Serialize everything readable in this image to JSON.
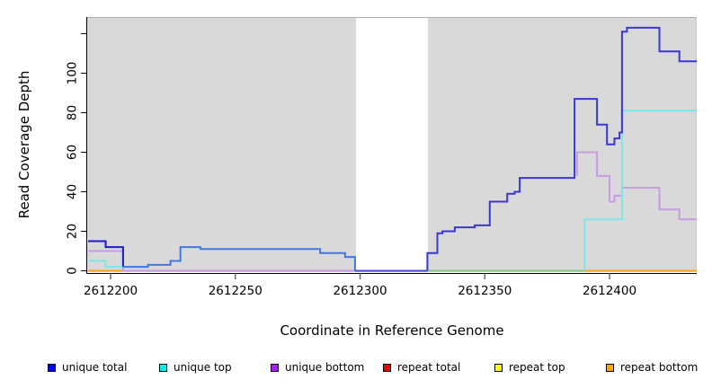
{
  "figure": {
    "panel_bg": "#D9D9D9",
    "page_bg": "#FFFFFF",
    "masked_region": {
      "x_start": 2612298.4,
      "x_end": 2612327.2,
      "color": "#FFFFFF"
    }
  },
  "axes": {
    "x": {
      "label": "Coordinate in Reference Genome",
      "ticks": [
        2612200,
        2612250,
        2612300,
        2612350,
        2612400
      ],
      "range": [
        2612190.6,
        2612435.2
      ]
    },
    "y": {
      "label": "Read Coverage Depth",
      "ticks": [
        0,
        20,
        40,
        60,
        80,
        100
      ],
      "unlabeled_ticks": [
        120
      ],
      "range": [
        -1,
        128.4
      ]
    }
  },
  "legend": {
    "items": [
      {
        "label": "unique total",
        "color": "#0000EE"
      },
      {
        "label": "unique top",
        "color": "#00EEEE"
      },
      {
        "label": "unique bottom",
        "color": "#A020F0"
      },
      {
        "label": "repeat total",
        "color": "#EE0000"
      },
      {
        "label": "repeat top",
        "color": "#FFFF00"
      },
      {
        "label": "repeat bottom",
        "color": "#FFA500"
      }
    ]
  },
  "chart_data": {
    "type": "line",
    "style": "step",
    "title": "",
    "xlabel": "Coordinate in Reference Genome",
    "ylabel": "Read Coverage Depth",
    "xlim": [
      2612190.6,
      2612435.2
    ],
    "ylim": [
      -1,
      128.4
    ],
    "grid": false,
    "legend_position": "bottom",
    "masked_region": [
      2612298.4,
      2612327.2
    ],
    "series": [
      {
        "name": "repeat total",
        "legend_color": "#EE0000",
        "segments": [
          {
            "color": "#D04070",
            "points": [
              [
                2612205,
                0
              ],
              [
                2612298,
                0
              ]
            ]
          }
        ]
      },
      {
        "name": "repeat top",
        "legend_color": "#FFFF00",
        "segments": [
          {
            "color": "#82C882",
            "points": [
              [
                2612327,
                0
              ],
              [
                2612390,
                0
              ]
            ]
          }
        ]
      },
      {
        "name": "repeat bottom",
        "legend_color": "#FFA500",
        "segments": [
          {
            "color": "#FFA319",
            "points": [
              [
                2612191,
                0
              ],
              [
                2612205,
                0
              ]
            ]
          },
          {
            "color": "#FFA319",
            "points": [
              [
                2612390,
                0
              ],
              [
                2612435,
                0
              ]
            ]
          }
        ]
      },
      {
        "name": "unique bottom",
        "legend_color": "#A020F0",
        "segments": [
          {
            "color": "#C89BE4",
            "points": [
              [
                2612191,
                10
              ],
              [
                2612205,
                10
              ],
              [
                2612205,
                0
              ],
              [
                2612298,
                0
              ]
            ]
          },
          {
            "color": "#C89BE4",
            "points": [
              [
                2612387,
                48
              ],
              [
                2612387,
                60
              ],
              [
                2612395,
                48
              ],
              [
                2612400,
                35
              ],
              [
                2612402,
                38
              ],
              [
                2612405,
                42
              ],
              [
                2612420,
                42
              ],
              [
                2612420,
                31
              ],
              [
                2612428,
                26
              ],
              [
                2612435,
                26
              ]
            ]
          }
        ]
      },
      {
        "name": "unique top",
        "legend_color": "#00EEEE",
        "segments": [
          {
            "color": "#79E8E8",
            "points": [
              [
                2612191,
                5
              ],
              [
                2612198,
                2
              ],
              [
                2612205,
                2
              ]
            ]
          },
          {
            "color": "#79E8E8",
            "points": [
              [
                2612390,
                0
              ],
              [
                2612390,
                26
              ],
              [
                2612405,
                26
              ],
              [
                2612405,
                81
              ],
              [
                2612435,
                81
              ]
            ]
          }
        ]
      },
      {
        "name": "unique total",
        "legend_color": "#0000EE",
        "segments": [
          {
            "color": "#1B1BD1",
            "points": [
              [
                2612191,
                15
              ],
              [
                2612198,
                12
              ],
              [
                2612205,
                2
              ]
            ]
          },
          {
            "color": "#4077E3",
            "points": [
              [
                2612205,
                2
              ],
              [
                2612215,
                3
              ],
              [
                2612224,
                5
              ],
              [
                2612228,
                12
              ],
              [
                2612236,
                11
              ],
              [
                2612284,
                9
              ],
              [
                2612294,
                7
              ],
              [
                2612298,
                0
              ]
            ]
          },
          {
            "color": "#4A4ADF",
            "points": [
              [
                2612298,
                0
              ],
              [
                2612327,
                0
              ]
            ]
          },
          {
            "color": "#3B36D6",
            "points": [
              [
                2612327,
                0
              ],
              [
                2612327,
                9
              ],
              [
                2612331,
                19
              ],
              [
                2612333,
                20
              ],
              [
                2612338,
                22
              ],
              [
                2612346,
                23
              ],
              [
                2612352,
                35
              ],
              [
                2612359,
                39
              ],
              [
                2612362,
                40
              ],
              [
                2612364,
                47
              ],
              [
                2612386,
                87
              ],
              [
                2612395,
                74
              ],
              [
                2612399,
                64
              ],
              [
                2612402,
                67
              ],
              [
                2612404,
                70
              ],
              [
                2612405,
                121
              ],
              [
                2612407,
                123
              ],
              [
                2612420,
                111
              ],
              [
                2612428,
                106
              ],
              [
                2612435,
                106
              ]
            ]
          }
        ]
      }
    ]
  }
}
